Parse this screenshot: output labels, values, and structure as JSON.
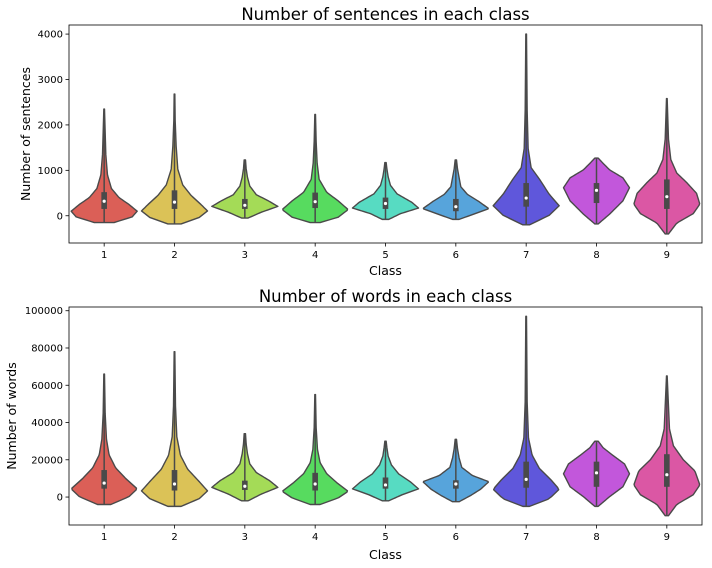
{
  "chart_data": [
    {
      "type": "violin",
      "title": "Number of sentences in each class",
      "xlabel": "Class",
      "ylabel": "Number of sentences",
      "categories": [
        "1",
        "2",
        "3",
        "4",
        "5",
        "6",
        "7",
        "8",
        "9"
      ],
      "ylim": [
        -600,
        4200
      ],
      "yticks": [
        0,
        1000,
        2000,
        3000,
        4000
      ],
      "yticklabels": [
        "0",
        "1000",
        "2000",
        "3000",
        "4000"
      ],
      "colors": [
        "#db5f57",
        "#dbc257",
        "#a4db57",
        "#57db5f",
        "#57dbc2",
        "#57a4db",
        "#5f57db",
        "#c257db",
        "#db57a4"
      ],
      "violins": [
        {
          "min": -150,
          "max": 2350,
          "q1": 150,
          "median": 320,
          "q3": 520,
          "peak": 280,
          "profile": [
            [
              0.0,
              0.3
            ],
            [
              0.05,
              0.85
            ],
            [
              0.1,
              1.0
            ],
            [
              0.16,
              0.75
            ],
            [
              0.22,
              0.45
            ],
            [
              0.3,
              0.22
            ],
            [
              0.42,
              0.1
            ],
            [
              0.6,
              0.05
            ],
            [
              0.8,
              0.03
            ],
            [
              1.0,
              0.01
            ]
          ]
        },
        {
          "min": -180,
          "max": 2680,
          "q1": 150,
          "median": 300,
          "q3": 560,
          "peak": 220,
          "profile": [
            [
              0.0,
              0.2
            ],
            [
              0.05,
              0.75
            ],
            [
              0.1,
              1.0
            ],
            [
              0.15,
              0.8
            ],
            [
              0.22,
              0.5
            ],
            [
              0.3,
              0.25
            ],
            [
              0.42,
              0.1
            ],
            [
              0.6,
              0.05
            ],
            [
              0.8,
              0.02
            ],
            [
              1.0,
              0.01
            ]
          ]
        },
        {
          "min": -50,
          "max": 1230,
          "q1": 150,
          "median": 230,
          "q3": 370,
          "peak": 200,
          "profile": [
            [
              0.0,
              0.1
            ],
            [
              0.1,
              0.5
            ],
            [
              0.2,
              1.0
            ],
            [
              0.3,
              0.7
            ],
            [
              0.4,
              0.35
            ],
            [
              0.55,
              0.15
            ],
            [
              0.7,
              0.08
            ],
            [
              0.85,
              0.04
            ],
            [
              1.0,
              0.02
            ]
          ]
        },
        {
          "min": -150,
          "max": 2230,
          "q1": 170,
          "median": 310,
          "q3": 510,
          "peak": 230,
          "profile": [
            [
              0.0,
              0.15
            ],
            [
              0.05,
              0.7
            ],
            [
              0.12,
              1.0
            ],
            [
              0.2,
              0.7
            ],
            [
              0.28,
              0.35
            ],
            [
              0.4,
              0.12
            ],
            [
              0.55,
              0.06
            ],
            [
              0.75,
              0.03
            ],
            [
              1.0,
              0.01
            ]
          ]
        },
        {
          "min": -80,
          "max": 1170,
          "q1": 150,
          "median": 270,
          "q3": 400,
          "peak": 230,
          "profile": [
            [
              0.0,
              0.1
            ],
            [
              0.1,
              0.45
            ],
            [
              0.2,
              1.0
            ],
            [
              0.3,
              0.8
            ],
            [
              0.45,
              0.35
            ],
            [
              0.6,
              0.15
            ],
            [
              0.75,
              0.08
            ],
            [
              0.9,
              0.04
            ],
            [
              1.0,
              0.02
            ]
          ]
        },
        {
          "min": -80,
          "max": 1230,
          "q1": 100,
          "median": 200,
          "q3": 370,
          "peak": 150,
          "profile": [
            [
              0.0,
              0.1
            ],
            [
              0.1,
              0.6
            ],
            [
              0.18,
              1.0
            ],
            [
              0.3,
              0.7
            ],
            [
              0.42,
              0.35
            ],
            [
              0.55,
              0.15
            ],
            [
              0.7,
              0.1
            ],
            [
              0.85,
              0.05
            ],
            [
              1.0,
              0.02
            ]
          ]
        },
        {
          "min": -200,
          "max": 4000,
          "q1": 200,
          "median": 390,
          "q3": 720,
          "peak": 230,
          "profile": [
            [
              0.0,
              0.1
            ],
            [
              0.05,
              0.7
            ],
            [
              0.1,
              1.0
            ],
            [
              0.16,
              0.7
            ],
            [
              0.24,
              0.4
            ],
            [
              0.3,
              0.15
            ],
            [
              0.4,
              0.06
            ],
            [
              0.6,
              0.03
            ],
            [
              0.8,
              0.02
            ],
            [
              1.0,
              0.01
            ]
          ]
        },
        {
          "min": -180,
          "max": 1270,
          "q1": 280,
          "median": 560,
          "q3": 720,
          "peak": 620,
          "profile": [
            [
              0.0,
              0.05
            ],
            [
              0.15,
              0.4
            ],
            [
              0.35,
              0.8
            ],
            [
              0.55,
              1.0
            ],
            [
              0.7,
              0.8
            ],
            [
              0.82,
              0.4
            ],
            [
              0.92,
              0.2
            ],
            [
              1.0,
              0.05
            ]
          ]
        },
        {
          "min": -400,
          "max": 2580,
          "q1": 150,
          "median": 420,
          "q3": 800,
          "peak": 250,
          "profile": [
            [
              0.0,
              0.05
            ],
            [
              0.08,
              0.3
            ],
            [
              0.15,
              0.8
            ],
            [
              0.22,
              1.0
            ],
            [
              0.3,
              0.9
            ],
            [
              0.38,
              0.6
            ],
            [
              0.45,
              0.3
            ],
            [
              0.55,
              0.12
            ],
            [
              0.7,
              0.05
            ],
            [
              1.0,
              0.01
            ]
          ]
        }
      ]
    },
    {
      "type": "violin",
      "title": "Number of words in each class",
      "xlabel": "Class",
      "ylabel": "Number of words",
      "categories": [
        "1",
        "2",
        "3",
        "4",
        "5",
        "6",
        "7",
        "8",
        "9"
      ],
      "ylim": [
        -15000,
        102000
      ],
      "yticks": [
        0,
        20000,
        40000,
        60000,
        80000,
        100000
      ],
      "yticklabels": [
        "0",
        "20000",
        "40000",
        "60000",
        "80000",
        "100000"
      ],
      "colors": [
        "#db5f57",
        "#dbc257",
        "#a4db57",
        "#57db5f",
        "#57dbc2",
        "#57a4db",
        "#5f57db",
        "#c257db",
        "#db57a4"
      ],
      "violins": [
        {
          "min": -4000,
          "max": 66000,
          "q1": 4500,
          "median": 7500,
          "q3": 14500,
          "peak": 6500,
          "profile": [
            [
              0.0,
              0.2
            ],
            [
              0.06,
              0.75
            ],
            [
              0.12,
              1.0
            ],
            [
              0.2,
              0.65
            ],
            [
              0.28,
              0.35
            ],
            [
              0.38,
              0.15
            ],
            [
              0.5,
              0.07
            ],
            [
              0.7,
              0.03
            ],
            [
              1.0,
              0.01
            ]
          ]
        },
        {
          "min": -5000,
          "max": 78000,
          "q1": 3500,
          "median": 7000,
          "q3": 14500,
          "peak": 5500,
          "profile": [
            [
              0.0,
              0.2
            ],
            [
              0.05,
              0.75
            ],
            [
              0.1,
              1.0
            ],
            [
              0.16,
              0.75
            ],
            [
              0.24,
              0.4
            ],
            [
              0.33,
              0.18
            ],
            [
              0.45,
              0.07
            ],
            [
              0.65,
              0.03
            ],
            [
              1.0,
              0.01
            ]
          ]
        },
        {
          "min": -2000,
          "max": 34000,
          "q1": 3800,
          "median": 5800,
          "q3": 8800,
          "peak": 5500,
          "profile": [
            [
              0.0,
              0.1
            ],
            [
              0.1,
              0.5
            ],
            [
              0.2,
              1.0
            ],
            [
              0.3,
              0.75
            ],
            [
              0.42,
              0.35
            ],
            [
              0.55,
              0.15
            ],
            [
              0.7,
              0.08
            ],
            [
              0.85,
              0.04
            ],
            [
              1.0,
              0.02
            ]
          ]
        },
        {
          "min": -4000,
          "max": 55000,
          "q1": 3500,
          "median": 7000,
          "q3": 13000,
          "peak": 6000,
          "profile": [
            [
              0.0,
              0.15
            ],
            [
              0.06,
              0.7
            ],
            [
              0.12,
              1.0
            ],
            [
              0.2,
              0.65
            ],
            [
              0.28,
              0.35
            ],
            [
              0.38,
              0.15
            ],
            [
              0.5,
              0.07
            ],
            [
              0.7,
              0.03
            ],
            [
              1.0,
              0.01
            ]
          ]
        },
        {
          "min": -2000,
          "max": 30000,
          "q1": 4500,
          "median": 6500,
          "q3": 10500,
          "peak": 6000,
          "profile": [
            [
              0.0,
              0.1
            ],
            [
              0.1,
              0.5
            ],
            [
              0.2,
              1.0
            ],
            [
              0.32,
              0.75
            ],
            [
              0.45,
              0.4
            ],
            [
              0.6,
              0.18
            ],
            [
              0.75,
              0.08
            ],
            [
              0.9,
              0.04
            ],
            [
              1.0,
              0.02
            ]
          ]
        },
        {
          "min": -2500,
          "max": 31000,
          "q1": 4500,
          "median": 7000,
          "q3": 9000,
          "peak": 8000,
          "profile": [
            [
              0.0,
              0.1
            ],
            [
              0.1,
              0.45
            ],
            [
              0.2,
              0.75
            ],
            [
              0.32,
              1.0
            ],
            [
              0.42,
              0.5
            ],
            [
              0.55,
              0.18
            ],
            [
              0.7,
              0.1
            ],
            [
              0.85,
              0.05
            ],
            [
              1.0,
              0.02
            ]
          ]
        },
        {
          "min": -5000,
          "max": 97000,
          "q1": 5000,
          "median": 9500,
          "q3": 19000,
          "peak": 7000,
          "profile": [
            [
              0.0,
              0.1
            ],
            [
              0.04,
              0.7
            ],
            [
              0.09,
              1.0
            ],
            [
              0.14,
              0.75
            ],
            [
              0.2,
              0.4
            ],
            [
              0.27,
              0.18
            ],
            [
              0.36,
              0.07
            ],
            [
              0.55,
              0.03
            ],
            [
              1.0,
              0.01
            ]
          ]
        },
        {
          "min": -5000,
          "max": 30000,
          "q1": 5500,
          "median": 13000,
          "q3": 19000,
          "peak": 13000,
          "profile": [
            [
              0.0,
              0.05
            ],
            [
              0.15,
              0.4
            ],
            [
              0.3,
              0.8
            ],
            [
              0.5,
              1.0
            ],
            [
              0.65,
              0.85
            ],
            [
              0.8,
              0.45
            ],
            [
              0.9,
              0.2
            ],
            [
              1.0,
              0.05
            ]
          ]
        },
        {
          "min": -10000,
          "max": 65000,
          "q1": 5500,
          "median": 12000,
          "q3": 23000,
          "peak": 10000,
          "profile": [
            [
              0.0,
              0.05
            ],
            [
              0.08,
              0.3
            ],
            [
              0.15,
              0.8
            ],
            [
              0.22,
              1.0
            ],
            [
              0.32,
              0.85
            ],
            [
              0.4,
              0.5
            ],
            [
              0.5,
              0.2
            ],
            [
              0.62,
              0.08
            ],
            [
              1.0,
              0.01
            ]
          ]
        }
      ]
    }
  ]
}
